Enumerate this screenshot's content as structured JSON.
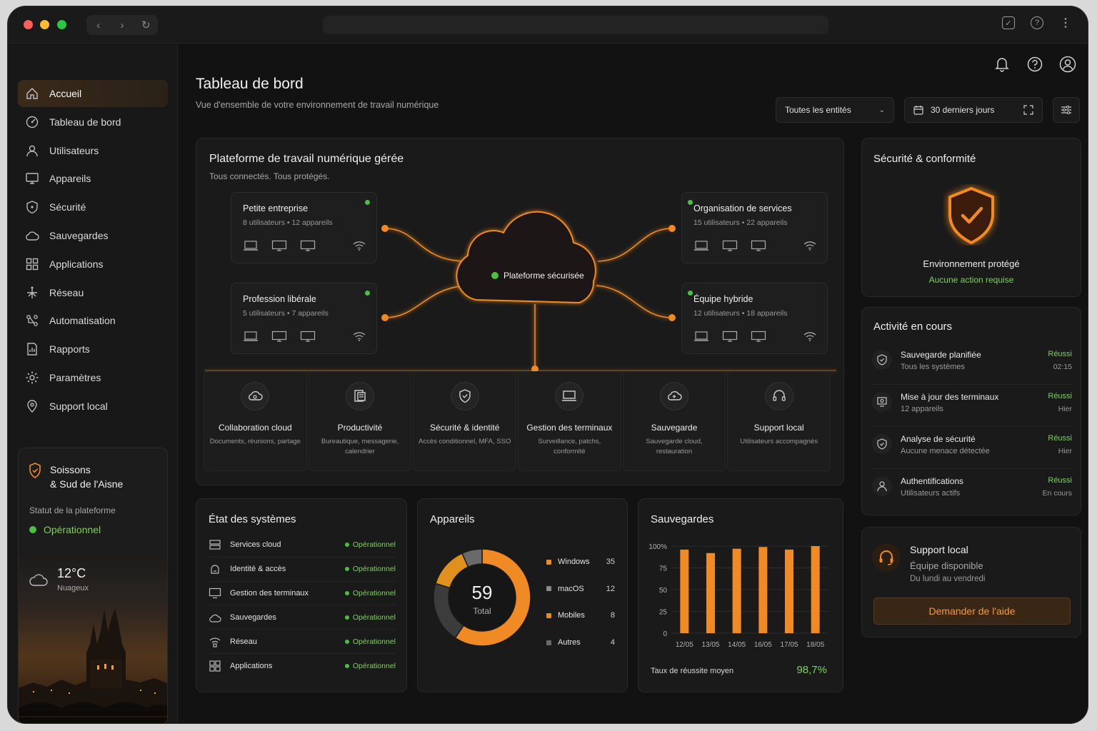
{
  "browser": {},
  "header": {
    "title": "Tableau de bord",
    "subtitle": "Vue d'ensemble de votre environnement de travail numérique",
    "entity_filter": "Toutes les entités",
    "date_filter": "30 derniers jours"
  },
  "sidebar": {
    "items": [
      {
        "label": "Accueil",
        "icon": "home-icon"
      },
      {
        "label": "Tableau de bord",
        "icon": "dashboard-icon"
      },
      {
        "label": "Utilisateurs",
        "icon": "user-icon"
      },
      {
        "label": "Appareils",
        "icon": "monitor-icon"
      },
      {
        "label": "Sécurité",
        "icon": "shield-icon"
      },
      {
        "label": "Sauvegardes",
        "icon": "cloud-icon"
      },
      {
        "label": "Applications",
        "icon": "grid-icon"
      },
      {
        "label": "Réseau",
        "icon": "network-icon"
      },
      {
        "label": "Automatisation",
        "icon": "automation-icon"
      },
      {
        "label": "Rapports",
        "icon": "report-icon"
      },
      {
        "label": "Paramètres",
        "icon": "gear-icon"
      },
      {
        "label": "Support local",
        "icon": "location-icon"
      }
    ],
    "location": {
      "line1": "Soissons",
      "line2": "& Sud de l'Aisne",
      "status_label": "Statut de la plateforme",
      "status": "Opérationnel",
      "temperature": "12°C",
      "condition": "Nuageux"
    }
  },
  "platform": {
    "title": "Plateforme de travail numérique gérée",
    "subtitle": "Tous connectés. Tous protégés.",
    "center_label": "Plateforme sécurisée",
    "entities": [
      {
        "name": "Petite entreprise",
        "meta": "8 utilisateurs • 12 appareils"
      },
      {
        "name": "Profession libérale",
        "meta": "5 utilisateurs • 7 appareils"
      },
      {
        "name": "Organisation de services",
        "meta": "15 utilisateurs • 22 appareils"
      },
      {
        "name": "Équipe hybride",
        "meta": "12 utilisateurs • 18 appareils"
      }
    ],
    "services": [
      {
        "name": "Collaboration cloud",
        "desc": "Documents, réunions, partage"
      },
      {
        "name": "Productivité",
        "desc": "Bureautique, messagerie, calendrier"
      },
      {
        "name": "Sécurité & identité",
        "desc": "Accès conditionnel, MFA, SSO"
      },
      {
        "name": "Gestion des terminaux",
        "desc": "Surveillance, patchs, conformité"
      },
      {
        "name": "Sauvegarde",
        "desc": "Sauvegarde cloud, restauration"
      },
      {
        "name": "Support local",
        "desc": "Utilisateurs accompagnés"
      }
    ]
  },
  "security": {
    "title": "Sécurité & conformité",
    "status": "Environnement protégé",
    "sub": "Aucune action requise"
  },
  "activity": {
    "title": "Activité en cours",
    "items": [
      {
        "name": "Sauvegarde planifiée",
        "sub": "Tous les systèmes",
        "status": "Réussi",
        "time": "02:15"
      },
      {
        "name": "Mise à jour des terminaux",
        "sub": "12 appareils",
        "status": "Réussi",
        "time": "Hier"
      },
      {
        "name": "Analyse de sécurité",
        "sub": "Aucune menace détectée",
        "status": "Réussi",
        "time": "Hier"
      },
      {
        "name": "Authentifications",
        "sub": "Utilisateurs actifs",
        "status": "Réussi",
        "time": "En cours"
      }
    ]
  },
  "support": {
    "title": "Support local",
    "line1": "Équipe disponible",
    "line2": "Du lundi au vendredi",
    "button": "Demander de l'aide"
  },
  "systems": {
    "title": "État des systèmes",
    "items": [
      {
        "name": "Services cloud",
        "status": "Opérationnel"
      },
      {
        "name": "Identité & accès",
        "status": "Opérationnel"
      },
      {
        "name": "Gestion des terminaux",
        "status": "Opérationnel"
      },
      {
        "name": "Sauvegardes",
        "status": "Opérationnel"
      },
      {
        "name": "Réseau",
        "status": "Opérationnel"
      },
      {
        "name": "Applications",
        "status": "Opérationnel"
      }
    ]
  },
  "devices": {
    "title": "Appareils",
    "total": "59",
    "total_label": "Total",
    "chart_data": {
      "type": "pie",
      "categories": [
        "Windows",
        "macOS",
        "Mobiles",
        "Autres"
      ],
      "values": [
        35,
        12,
        8,
        4
      ]
    },
    "colors": [
      "#f08a24",
      "#3c3c3c",
      "#e0901c",
      "#6a6a6a"
    ]
  },
  "backups": {
    "title": "Sauvegardes",
    "footer_label": "Taux de réussite moyen",
    "footer_value": "98,7%",
    "chart_data": {
      "type": "bar",
      "categories": [
        "12/05",
        "13/05",
        "14/05",
        "16/05",
        "17/05",
        "18/05"
      ],
      "values": [
        96,
        92,
        97,
        99,
        96,
        100
      ],
      "yticks": [
        "100%",
        "75",
        "50",
        "25",
        "0"
      ],
      "ylim": [
        0,
        100
      ]
    },
    "accent": "#f08a24"
  }
}
